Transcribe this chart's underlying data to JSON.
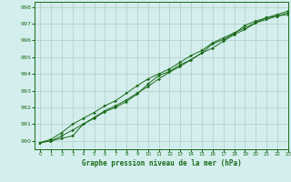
{
  "title": "Graphe pression niveau de la mer (hPa)",
  "background_color": "#d4eeed",
  "plot_bg_color": "#d4eeed",
  "grid_color": "#b0ccc8",
  "line_color": "#1a6b1a",
  "marker_color": "#1a6b1a",
  "xlim": [
    -0.5,
    23
  ],
  "ylim": [
    989.5,
    998.3
  ],
  "yticks": [
    990,
    991,
    992,
    993,
    994,
    995,
    996,
    997,
    998
  ],
  "xtick_labels": [
    "0",
    "1",
    "2",
    "3",
    "4",
    "5",
    "6",
    "7",
    "8",
    "9",
    "1011",
    "1213",
    "1415",
    "1617",
    "1819",
    "2021",
    "2223"
  ],
  "series1": [
    989.9,
    990.0,
    990.15,
    990.3,
    991.0,
    991.35,
    991.75,
    992.0,
    992.35,
    992.8,
    993.4,
    993.9,
    994.15,
    994.55,
    994.85,
    995.25,
    995.8,
    996.05,
    996.4,
    996.9,
    997.15,
    997.35,
    997.45,
    997.55
  ],
  "series2": [
    989.9,
    990.1,
    990.5,
    991.0,
    991.35,
    991.7,
    992.1,
    992.4,
    992.85,
    993.3,
    993.7,
    994.0,
    994.3,
    994.7,
    995.1,
    995.4,
    995.85,
    996.15,
    996.45,
    996.75,
    997.05,
    997.25,
    997.45,
    997.65
  ],
  "series3": [
    989.9,
    990.0,
    990.3,
    990.65,
    991.0,
    991.4,
    991.8,
    992.1,
    992.45,
    992.85,
    993.25,
    993.7,
    994.1,
    994.45,
    994.85,
    995.25,
    995.55,
    995.95,
    996.35,
    996.65,
    997.05,
    997.35,
    997.55,
    997.75
  ]
}
